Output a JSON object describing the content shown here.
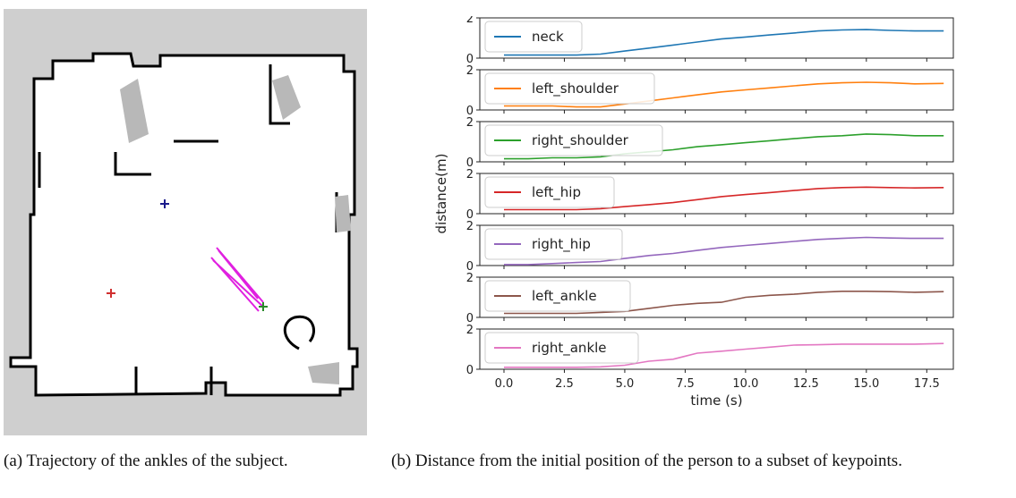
{
  "map": {
    "background_color": "#cfcfcf",
    "free_space_color": "#ffffff",
    "wall_color": "#000000",
    "trajectory_color": "#e020e0",
    "markers": [
      {
        "name": "blue-plus-marker",
        "color": "#1a1a8c"
      },
      {
        "name": "red-plus-marker",
        "color": "#d03030"
      },
      {
        "name": "green-end-marker",
        "color": "#2a8a2a"
      }
    ]
  },
  "captions": {
    "a": "(a) Trajectory of the ankles of the subject.",
    "b": "(b) Distance from the initial position of the person to a subset of keypoints."
  },
  "chart_data": {
    "type": "line",
    "xlabel": "time (s)",
    "ylabel": "distance(m)",
    "xlim": [
      -1.0,
      18.6
    ],
    "ylim": [
      0,
      2
    ],
    "xticks": [
      "0.0",
      "2.5",
      "5.0",
      "7.5",
      "10.0",
      "12.5",
      "15.0",
      "17.5"
    ],
    "yticks": [
      "0",
      "2"
    ],
    "legend_placement": "upper left",
    "x": [
      0,
      1,
      2,
      3,
      4,
      5,
      6,
      7,
      8,
      9,
      10,
      11,
      12,
      13,
      14,
      15,
      16,
      17,
      18.2
    ],
    "series": [
      {
        "name": "neck",
        "color": "#1f77b4",
        "values": [
          0.15,
          0.15,
          0.15,
          0.15,
          0.2,
          0.35,
          0.5,
          0.65,
          0.8,
          0.95,
          1.05,
          1.15,
          1.25,
          1.35,
          1.4,
          1.42,
          1.38,
          1.35,
          1.35
        ]
      },
      {
        "name": "left_shoulder",
        "color": "#ff7f0e",
        "values": [
          0.2,
          0.2,
          0.2,
          0.15,
          0.15,
          0.3,
          0.45,
          0.6,
          0.75,
          0.9,
          1.0,
          1.1,
          1.2,
          1.3,
          1.35,
          1.38,
          1.35,
          1.3,
          1.32
        ]
      },
      {
        "name": "right_shoulder",
        "color": "#2ca02c",
        "values": [
          0.15,
          0.15,
          0.2,
          0.2,
          0.25,
          0.4,
          0.5,
          0.6,
          0.75,
          0.85,
          0.95,
          1.05,
          1.15,
          1.25,
          1.3,
          1.38,
          1.35,
          1.3,
          1.3
        ]
      },
      {
        "name": "left_hip",
        "color": "#d62728",
        "values": [
          0.2,
          0.2,
          0.2,
          0.2,
          0.25,
          0.35,
          0.45,
          0.55,
          0.7,
          0.85,
          0.95,
          1.05,
          1.15,
          1.25,
          1.3,
          1.32,
          1.3,
          1.28,
          1.3
        ]
      },
      {
        "name": "right_hip",
        "color": "#9467bd",
        "values": [
          0.05,
          0.05,
          0.1,
          0.15,
          0.2,
          0.35,
          0.5,
          0.6,
          0.75,
          0.9,
          1.0,
          1.1,
          1.2,
          1.3,
          1.35,
          1.4,
          1.37,
          1.35,
          1.35
        ]
      },
      {
        "name": "left_ankle",
        "color": "#8c564b",
        "values": [
          0.2,
          0.2,
          0.2,
          0.2,
          0.25,
          0.3,
          0.45,
          0.6,
          0.7,
          0.75,
          1.0,
          1.1,
          1.15,
          1.25,
          1.3,
          1.3,
          1.28,
          1.25,
          1.28
        ]
      },
      {
        "name": "right_ankle",
        "color": "#e377c2",
        "values": [
          0.1,
          0.1,
          0.1,
          0.1,
          0.12,
          0.2,
          0.4,
          0.5,
          0.8,
          0.9,
          1.0,
          1.1,
          1.2,
          1.22,
          1.25,
          1.25,
          1.25,
          1.25,
          1.28
        ]
      }
    ]
  }
}
